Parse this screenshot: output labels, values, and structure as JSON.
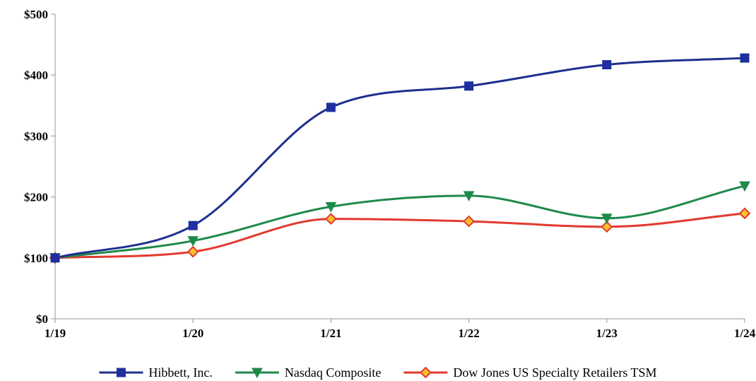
{
  "chart_data": {
    "type": "line",
    "title": "",
    "xlabel": "",
    "ylabel": "",
    "categories": [
      "1/19",
      "1/20",
      "1/21",
      "1/22",
      "1/23",
      "1/24"
    ],
    "ylim": [
      0,
      500
    ],
    "yticks": [
      0,
      100,
      200,
      300,
      400,
      500
    ],
    "ytick_labels": [
      "$0",
      "$100",
      "$200",
      "$300",
      "$400",
      "$500"
    ],
    "grid": false,
    "legend_position": "bottom",
    "series": [
      {
        "name": "Hibbett, Inc.",
        "values": [
          100,
          153,
          347,
          382,
          417,
          428
        ],
        "color": "#1f2f8f",
        "marker": "square",
        "marker_fill": "#1f2f9f",
        "marker_stroke": "#1f2f9f"
      },
      {
        "name": "Nasdaq Composite",
        "values": [
          100,
          128,
          184,
          202,
          165,
          218
        ],
        "color": "#1e8a4a",
        "marker": "triangle-down",
        "marker_fill": "#1e8a4a",
        "marker_stroke": "#1e8a4a"
      },
      {
        "name": "Dow Jones US Specialty Retailers TSM",
        "values": [
          100,
          110,
          164,
          160,
          151,
          173
        ],
        "color": "#e23a2f",
        "marker": "diamond",
        "marker_fill": "#f2c12e",
        "marker_stroke": "#e23a2f"
      }
    ]
  }
}
